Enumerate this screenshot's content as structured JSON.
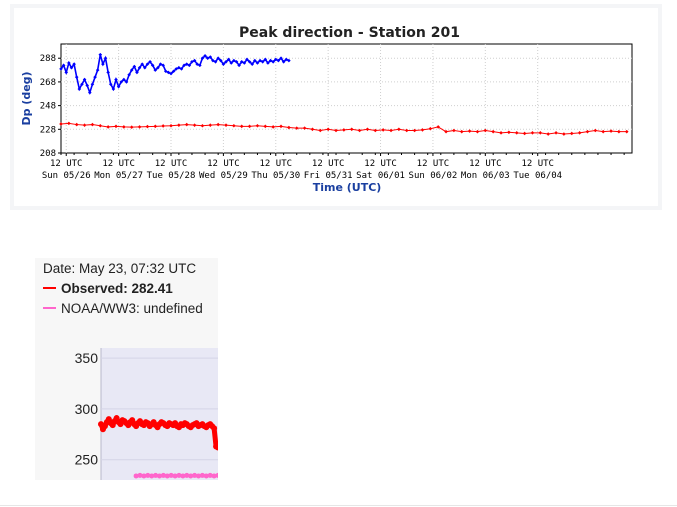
{
  "chart_data": [
    {
      "type": "line",
      "title": "Peak direction - Station 201",
      "xlabel": "Time (UTC)",
      "ylabel": "Dp (deg)",
      "ylim": [
        208,
        300
      ],
      "y_ticks": [
        "208",
        "228",
        "248",
        "268",
        "288"
      ],
      "x_ticks": [
        {
          "top": "12 UTC",
          "bottom": "Sun 05/26"
        },
        {
          "top": "12 UTC",
          "bottom": "Mon 05/27"
        },
        {
          "top": "12 UTC",
          "bottom": "Tue 05/28"
        },
        {
          "top": "12 UTC",
          "bottom": "Wed 05/29"
        },
        {
          "top": "12 UTC",
          "bottom": "Thu 05/30"
        },
        {
          "top": "12 UTC",
          "bottom": "Fri 05/31"
        },
        {
          "top": "12 UTC",
          "bottom": "Sat 06/01"
        },
        {
          "top": "12 UTC",
          "bottom": "Sun 06/02"
        },
        {
          "top": "12 UTC",
          "bottom": "Mon 06/03"
        },
        {
          "top": "12 UTC",
          "bottom": "Tue 06/04"
        }
      ],
      "x_range_days": [
        0,
        10.9
      ],
      "grid": true,
      "series": [
        {
          "color": "#0000ff",
          "x": [
            0.0,
            0.05,
            0.1,
            0.15,
            0.2,
            0.25,
            0.3,
            0.35,
            0.4,
            0.45,
            0.5,
            0.55,
            0.6,
            0.65,
            0.7,
            0.75,
            0.8,
            0.85,
            0.9,
            0.95,
            1.0,
            1.05,
            1.1,
            1.15,
            1.2,
            1.25,
            1.3,
            1.35,
            1.4,
            1.45,
            1.5,
            1.55,
            1.6,
            1.65,
            1.7,
            1.75,
            1.8,
            1.85,
            1.9,
            1.95,
            2.0,
            2.05,
            2.1,
            2.15,
            2.2,
            2.25,
            2.3,
            2.35,
            2.4,
            2.45,
            2.5,
            2.55,
            2.6,
            2.65,
            2.7,
            2.75,
            2.8,
            2.85,
            2.9,
            2.95,
            3.0,
            3.05,
            3.1,
            3.15,
            3.2,
            3.25,
            3.3,
            3.35,
            3.4,
            3.45,
            3.5,
            3.55,
            3.6,
            3.65,
            3.7,
            3.75,
            3.8,
            3.85,
            3.9,
            3.95,
            4.0,
            4.05,
            4.1,
            4.15,
            4.2,
            4.25,
            4.3,
            4.35
          ],
          "y": [
            279,
            282,
            276,
            284,
            280,
            283,
            272,
            262,
            266,
            270,
            265,
            259,
            266,
            272,
            278,
            291,
            283,
            288,
            276,
            266,
            262,
            270,
            264,
            268,
            270,
            268,
            274,
            278,
            281,
            276,
            280,
            283,
            280,
            283,
            285,
            282,
            278,
            280,
            283,
            282,
            277,
            276,
            275,
            277,
            279,
            280,
            279,
            282,
            283,
            282,
            285,
            286,
            283,
            282,
            288,
            290,
            288,
            289,
            286,
            285,
            288,
            286,
            283,
            285,
            287,
            284,
            286,
            285,
            282,
            285,
            284,
            287,
            285,
            283,
            286,
            284,
            286,
            285,
            287,
            284,
            286,
            285,
            287,
            286,
            288,
            285,
            287,
            286
          ]
        },
        {
          "color": "#ff0000",
          "x": [
            0.0,
            0.15,
            0.3,
            0.45,
            0.6,
            0.75,
            0.9,
            1.05,
            1.2,
            1.35,
            1.5,
            1.65,
            1.8,
            1.95,
            2.1,
            2.25,
            2.4,
            2.55,
            2.7,
            2.85,
            3.0,
            3.15,
            3.3,
            3.45,
            3.6,
            3.75,
            3.9,
            4.05,
            4.2,
            4.35,
            4.5,
            4.65,
            4.8,
            4.95,
            5.1,
            5.25,
            5.4,
            5.55,
            5.7,
            5.85,
            6.0,
            6.15,
            6.3,
            6.45,
            6.6,
            6.75,
            6.9,
            7.05,
            7.2,
            7.35,
            7.5,
            7.65,
            7.8,
            7.95,
            8.1,
            8.25,
            8.4,
            8.55,
            8.7,
            8.85,
            9.0,
            9.15,
            9.3,
            9.45,
            9.6,
            9.75,
            9.9,
            10.05,
            10.2,
            10.35,
            10.5,
            10.65,
            10.8
          ],
          "y": [
            232.5,
            233,
            232,
            231.5,
            232,
            231,
            230,
            230.5,
            230,
            229.8,
            230,
            230.3,
            230.5,
            230.8,
            231,
            231.5,
            232,
            231.5,
            231,
            231.5,
            232,
            231.5,
            231,
            230.5,
            230.5,
            231,
            230.5,
            230,
            230.5,
            229.5,
            229,
            229,
            228,
            227,
            228,
            227,
            227.5,
            228,
            227,
            228,
            227,
            227.5,
            227,
            228,
            227,
            227,
            227.5,
            228.5,
            230,
            226,
            227,
            226,
            226.5,
            226,
            227,
            226,
            225,
            225.5,
            225,
            224.5,
            225,
            225,
            224,
            225,
            224,
            224.5,
            225,
            226,
            227,
            226,
            226.5,
            226,
            226
          ]
        }
      ]
    },
    {
      "type": "line",
      "title": "",
      "y_ticks": [
        "350",
        "300",
        "250"
      ],
      "ylim": [
        230,
        360
      ],
      "series": [
        {
          "name": "Observed",
          "color": "#ff0000",
          "x": [
            0,
            1,
            2,
            3,
            4,
            5,
            6,
            7,
            8,
            9,
            10,
            11,
            12,
            13,
            14,
            15,
            16,
            17,
            18,
            19,
            20,
            21,
            22,
            23,
            24,
            25,
            26,
            27,
            28,
            29,
            30,
            31,
            32,
            33,
            34,
            35,
            36,
            37,
            38,
            39,
            40,
            41,
            42,
            43,
            44,
            45,
            46,
            47,
            48,
            49,
            50,
            51,
            52,
            53,
            54,
            55,
            56,
            57,
            58,
            59,
            60
          ],
          "y": [
            285,
            280,
            283,
            287,
            290,
            286,
            284,
            288,
            291,
            287,
            285,
            289,
            288,
            286,
            284,
            287,
            289,
            285,
            283,
            286,
            288,
            285,
            284,
            287,
            286,
            283,
            285,
            287,
            284,
            282,
            285,
            287,
            286,
            284,
            283,
            286,
            285,
            284,
            286,
            283,
            282,
            285,
            284,
            286,
            285,
            283,
            282,
            284,
            285,
            286,
            283,
            284,
            285,
            283,
            282,
            284,
            285,
            283,
            281,
            263,
            262
          ]
        },
        {
          "name": "NOAA/WW3",
          "color": "#ff66cc",
          "x": [
            18,
            20,
            22,
            24,
            26,
            28,
            30,
            32,
            34,
            36,
            38,
            40,
            42,
            44,
            46,
            48,
            50,
            52,
            54,
            56,
            58,
            60
          ],
          "y": [
            234,
            234.5,
            234,
            234.5,
            234,
            234.5,
            234,
            234.5,
            234,
            234.5,
            234,
            234.5,
            234,
            234.5,
            234,
            234.5,
            234,
            234.5,
            234,
            234.5,
            234,
            234.5
          ]
        }
      ]
    }
  ],
  "tooltip": {
    "date": "Date: May 23, 07:32 UTC",
    "observed": "Observed: 282.41",
    "model": "NOAA/WW3: undefined",
    "observed_color": "#ff0000",
    "model_color": "#ff66cc"
  }
}
